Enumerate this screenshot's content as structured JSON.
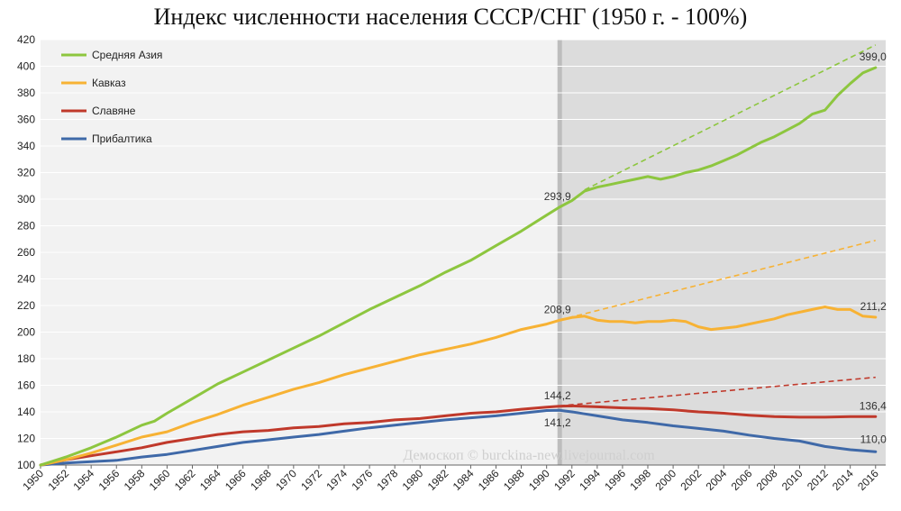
{
  "chart_data": {
    "type": "line",
    "title": "Индекс численности населения СССР/СНГ (1950 г. - 100%)",
    "xlabel": "",
    "ylabel": "",
    "xlim": [
      1950,
      2016
    ],
    "ylim": [
      100,
      420
    ],
    "y_ticks": [
      100,
      120,
      140,
      160,
      180,
      200,
      220,
      240,
      260,
      280,
      300,
      320,
      340,
      360,
      380,
      400,
      420
    ],
    "x_ticks": [
      "1950",
      "1952",
      "1954",
      "1956",
      "1958",
      "1960",
      "1962",
      "1964",
      "1966",
      "1968",
      "1970",
      "1972",
      "1974",
      "1976",
      "1978",
      "1980",
      "1982",
      "1984",
      "1986",
      "1988",
      "1990",
      "1992",
      "1994",
      "1996",
      "1998",
      "2000",
      "2002",
      "2004",
      "2006",
      "2008",
      "2010",
      "2012",
      "2014",
      "2016"
    ],
    "shaded_region": {
      "from": 1991,
      "to": 2016.8,
      "color": "#dcdcdc"
    },
    "background_region": {
      "from": 1950,
      "to": 1991,
      "color": "#f2f2f2"
    },
    "grid": true,
    "legend_position": "top-left",
    "watermark": "Демоскоп © burckina-new.livejournal.com",
    "series": [
      {
        "name": "Средняя Азия",
        "color": "#8dc63f",
        "points": [
          [
            1950,
            100
          ],
          [
            1952,
            106
          ],
          [
            1954,
            113
          ],
          [
            1956,
            121
          ],
          [
            1958,
            130
          ],
          [
            1959,
            133
          ],
          [
            1960,
            139
          ],
          [
            1962,
            150
          ],
          [
            1964,
            161
          ],
          [
            1966,
            170
          ],
          [
            1968,
            179
          ],
          [
            1970,
            188
          ],
          [
            1972,
            197
          ],
          [
            1974,
            207
          ],
          [
            1976,
            217
          ],
          [
            1978,
            226
          ],
          [
            1980,
            235
          ],
          [
            1982,
            245
          ],
          [
            1984,
            254
          ],
          [
            1986,
            265
          ],
          [
            1988,
            276
          ],
          [
            1990,
            288
          ],
          [
            1991,
            293.9
          ],
          [
            1992,
            299
          ],
          [
            1993,
            306
          ],
          [
            1994,
            309
          ],
          [
            1995,
            311
          ],
          [
            1996,
            313
          ],
          [
            1997,
            315
          ],
          [
            1998,
            317
          ],
          [
            1999,
            315
          ],
          [
            2000,
            317
          ],
          [
            2001,
            320
          ],
          [
            2002,
            322
          ],
          [
            2003,
            325
          ],
          [
            2004,
            329
          ],
          [
            2005,
            333
          ],
          [
            2006,
            338
          ],
          [
            2007,
            343
          ],
          [
            2008,
            347
          ],
          [
            2009,
            352
          ],
          [
            2010,
            357
          ],
          [
            2011,
            364
          ],
          [
            2012,
            367
          ],
          [
            2013,
            378
          ],
          [
            2014,
            387
          ],
          [
            2015,
            395
          ],
          [
            2016,
            399
          ]
        ],
        "trend": [
          [
            1993,
            307
          ],
          [
            2016,
            416
          ]
        ],
        "labels": [
          {
            "x": 1991,
            "y": 293.9,
            "text": "293,9"
          },
          {
            "x": 2016,
            "y": 399.0,
            "text": "399,0"
          }
        ]
      },
      {
        "name": "Кавказ",
        "color": "#f7b234",
        "points": [
          [
            1950,
            100
          ],
          [
            1952,
            104
          ],
          [
            1954,
            109
          ],
          [
            1956,
            115
          ],
          [
            1958,
            121
          ],
          [
            1960,
            125
          ],
          [
            1962,
            132
          ],
          [
            1964,
            138
          ],
          [
            1966,
            145
          ],
          [
            1968,
            151
          ],
          [
            1970,
            157
          ],
          [
            1972,
            162
          ],
          [
            1974,
            168
          ],
          [
            1976,
            173
          ],
          [
            1978,
            178
          ],
          [
            1980,
            183
          ],
          [
            1982,
            187
          ],
          [
            1984,
            191
          ],
          [
            1986,
            196
          ],
          [
            1988,
            202
          ],
          [
            1990,
            206
          ],
          [
            1991,
            208.9
          ],
          [
            1992,
            211
          ],
          [
            1993,
            212
          ],
          [
            1994,
            209
          ],
          [
            1995,
            208
          ],
          [
            1996,
            208
          ],
          [
            1997,
            207
          ],
          [
            1998,
            208
          ],
          [
            1999,
            208
          ],
          [
            2000,
            209
          ],
          [
            2001,
            208
          ],
          [
            2002,
            204
          ],
          [
            2003,
            202
          ],
          [
            2004,
            203
          ],
          [
            2005,
            204
          ],
          [
            2006,
            206
          ],
          [
            2007,
            208
          ],
          [
            2008,
            210
          ],
          [
            2009,
            213
          ],
          [
            2010,
            215
          ],
          [
            2011,
            217
          ],
          [
            2012,
            219
          ],
          [
            2013,
            217
          ],
          [
            2014,
            217
          ],
          [
            2015,
            212
          ],
          [
            2016,
            211.2
          ]
        ],
        "trend": [
          [
            1991,
            209
          ],
          [
            2016,
            269
          ]
        ],
        "labels": [
          {
            "x": 1991,
            "y": 208.9,
            "text": "208,9"
          },
          {
            "x": 2016,
            "y": 211.2,
            "text": "211,2"
          }
        ]
      },
      {
        "name": "Славяне",
        "color": "#c0392b",
        "points": [
          [
            1950,
            100
          ],
          [
            1952,
            104
          ],
          [
            1954,
            107
          ],
          [
            1956,
            110
          ],
          [
            1958,
            113
          ],
          [
            1960,
            117
          ],
          [
            1962,
            120
          ],
          [
            1964,
            123
          ],
          [
            1966,
            125
          ],
          [
            1968,
            126
          ],
          [
            1970,
            128
          ],
          [
            1972,
            129
          ],
          [
            1974,
            131
          ],
          [
            1976,
            132
          ],
          [
            1978,
            134
          ],
          [
            1980,
            135
          ],
          [
            1982,
            137
          ],
          [
            1984,
            139
          ],
          [
            1986,
            140
          ],
          [
            1988,
            142
          ],
          [
            1990,
            143.5
          ],
          [
            1991,
            144.2
          ],
          [
            1992,
            144.5
          ],
          [
            1994,
            143.8
          ],
          [
            1996,
            143
          ],
          [
            1998,
            142.6
          ],
          [
            2000,
            141.5
          ],
          [
            2002,
            140
          ],
          [
            2004,
            139
          ],
          [
            2006,
            137.5
          ],
          [
            2008,
            136.4
          ],
          [
            2010,
            136
          ],
          [
            2012,
            136
          ],
          [
            2014,
            136.4
          ],
          [
            2016,
            136.4
          ]
        ],
        "trend": [
          [
            1991,
            144.5
          ],
          [
            2016,
            166
          ]
        ],
        "labels": [
          {
            "x": 1991,
            "y": 144.2,
            "text": "144,2"
          },
          {
            "x": 2016,
            "y": 136.4,
            "text": "136,4"
          }
        ]
      },
      {
        "name": "Прибалтика",
        "color": "#3f69a8",
        "points": [
          [
            1950,
            100
          ],
          [
            1952,
            101.5
          ],
          [
            1954,
            102.5
          ],
          [
            1956,
            103.5
          ],
          [
            1958,
            106
          ],
          [
            1960,
            108
          ],
          [
            1962,
            111
          ],
          [
            1964,
            114
          ],
          [
            1966,
            117
          ],
          [
            1968,
            119
          ],
          [
            1970,
            121
          ],
          [
            1972,
            123
          ],
          [
            1974,
            125.5
          ],
          [
            1976,
            128
          ],
          [
            1978,
            130
          ],
          [
            1980,
            132
          ],
          [
            1982,
            134
          ],
          [
            1984,
            135.5
          ],
          [
            1986,
            137
          ],
          [
            1988,
            139
          ],
          [
            1990,
            141
          ],
          [
            1991,
            141.2
          ],
          [
            1992,
            140
          ],
          [
            1993,
            138.5
          ],
          [
            1994,
            137
          ],
          [
            1996,
            134
          ],
          [
            1998,
            132
          ],
          [
            2000,
            129.5
          ],
          [
            2002,
            127.5
          ],
          [
            2004,
            125.5
          ],
          [
            2006,
            122.5
          ],
          [
            2008,
            120
          ],
          [
            2010,
            118
          ],
          [
            2012,
            114
          ],
          [
            2014,
            111.5
          ],
          [
            2016,
            110
          ]
        ],
        "trend": null,
        "labels": [
          {
            "x": 1991,
            "y": 141.2,
            "text": "141,2"
          },
          {
            "x": 2016,
            "y": 110.0,
            "text": "110,0"
          }
        ]
      }
    ]
  }
}
